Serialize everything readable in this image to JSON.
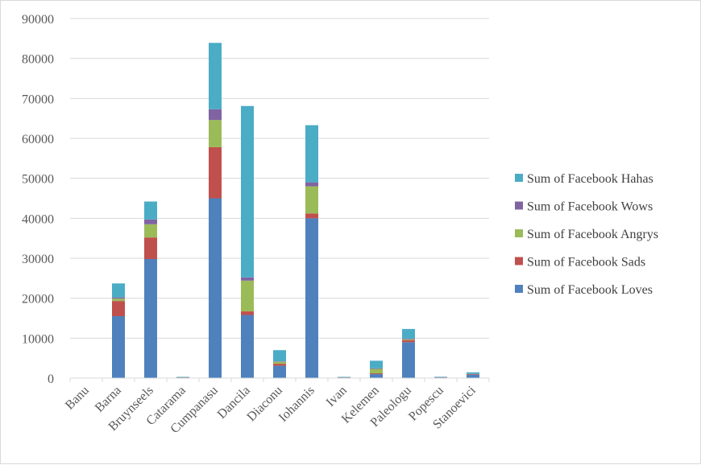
{
  "chart_data": {
    "type": "bar",
    "stacked": true,
    "title": "",
    "xlabel": "",
    "ylabel": "",
    "ylim": [
      0,
      90000
    ],
    "yticks": [
      0,
      10000,
      20000,
      30000,
      40000,
      50000,
      60000,
      70000,
      80000,
      90000
    ],
    "grid": true,
    "legend_position": "right",
    "categories": [
      "Banu",
      "Barna",
      "Bruynseels",
      "Catarama",
      "Cumpanasu",
      "Dancila",
      "Diaconu",
      "Iohannis",
      "Ivan",
      "Kelemen",
      "Paleologu",
      "Popescu",
      "Stanoevici"
    ],
    "series": [
      {
        "name": "Sum of Facebook Loves",
        "color": "#4F81BD",
        "values": [
          0,
          15500,
          29800,
          100,
          45000,
          15800,
          3100,
          40000,
          100,
          1000,
          9000,
          150,
          800
        ]
      },
      {
        "name": "Sum of Facebook Sads",
        "color": "#C0504D",
        "values": [
          0,
          3800,
          5400,
          50,
          12800,
          900,
          500,
          1200,
          50,
          200,
          500,
          30,
          100
        ]
      },
      {
        "name": "Sum of Facebook Angrys",
        "color": "#9BBB59",
        "values": [
          0,
          600,
          3300,
          50,
          6800,
          7700,
          500,
          6800,
          50,
          1100,
          200,
          30,
          100
        ]
      },
      {
        "name": "Sum of Facebook Wows",
        "color": "#8064A2",
        "values": [
          0,
          300,
          1200,
          30,
          2700,
          800,
          100,
          1000,
          30,
          150,
          200,
          20,
          50
        ]
      },
      {
        "name": "Sum of Facebook Hahas",
        "color": "#4BACC6",
        "values": [
          0,
          3500,
          4500,
          100,
          16600,
          42900,
          2800,
          14300,
          100,
          1900,
          2400,
          120,
          400
        ]
      }
    ]
  }
}
